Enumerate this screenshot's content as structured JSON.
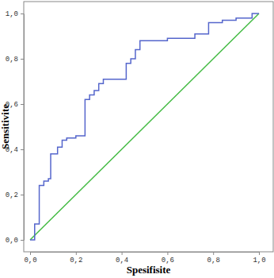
{
  "chart_data": {
    "type": "line",
    "x_label": "Spesifisite",
    "y_label": "Sensitivite",
    "xlim": [
      0,
      1
    ],
    "ylim": [
      0,
      1
    ],
    "xticks": [
      {
        "value": 0,
        "label": "0,0"
      },
      {
        "value": 0.2,
        "label": "0,2"
      },
      {
        "value": 0.4,
        "label": "0,4"
      },
      {
        "value": 0.6,
        "label": "0,6"
      },
      {
        "value": 0.8,
        "label": "0,8"
      },
      {
        "value": 1,
        "label": "1,0"
      }
    ],
    "yticks": [
      {
        "value": 0,
        "label": "0,0"
      },
      {
        "value": 0.2,
        "label": "0,2"
      },
      {
        "value": 0.4,
        "label": "0,4"
      },
      {
        "value": 0.6,
        "label": "0,6"
      },
      {
        "value": 0.8,
        "label": "0,8"
      },
      {
        "value": 1,
        "label": "1,0"
      }
    ],
    "series": [
      {
        "color": "#5566cc",
        "x": [
          0,
          0.02,
          0.02,
          0.04,
          0.04,
          0.06,
          0.06,
          0.08,
          0.08,
          0.09,
          0.09,
          0.12,
          0.12,
          0.14,
          0.14,
          0.16,
          0.16,
          0.2,
          0.2,
          0.24,
          0.24,
          0.26,
          0.26,
          0.28,
          0.28,
          0.3,
          0.3,
          0.32,
          0.32,
          0.42,
          0.42,
          0.44,
          0.44,
          0.46,
          0.46,
          0.48,
          0.48,
          0.6,
          0.6,
          0.72,
          0.72,
          0.78,
          0.78,
          0.84,
          0.84,
          0.9,
          0.9,
          0.97,
          0.97,
          1.0
        ],
        "values": [
          0,
          0,
          0.07,
          0.07,
          0.24,
          0.24,
          0.26,
          0.26,
          0.27,
          0.27,
          0.38,
          0.38,
          0.41,
          0.41,
          0.44,
          0.44,
          0.45,
          0.45,
          0.46,
          0.46,
          0.62,
          0.62,
          0.64,
          0.64,
          0.66,
          0.66,
          0.69,
          0.69,
          0.71,
          0.71,
          0.78,
          0.78,
          0.8,
          0.8,
          0.84,
          0.84,
          0.88,
          0.88,
          0.89,
          0.89,
          0.91,
          0.91,
          0.96,
          0.96,
          0.97,
          0.97,
          0.98,
          0.98,
          1.0,
          1.0
        ]
      },
      {
        "color": "#44bb44",
        "x": [
          0,
          1
        ],
        "values": [
          0,
          1
        ]
      }
    ]
  }
}
